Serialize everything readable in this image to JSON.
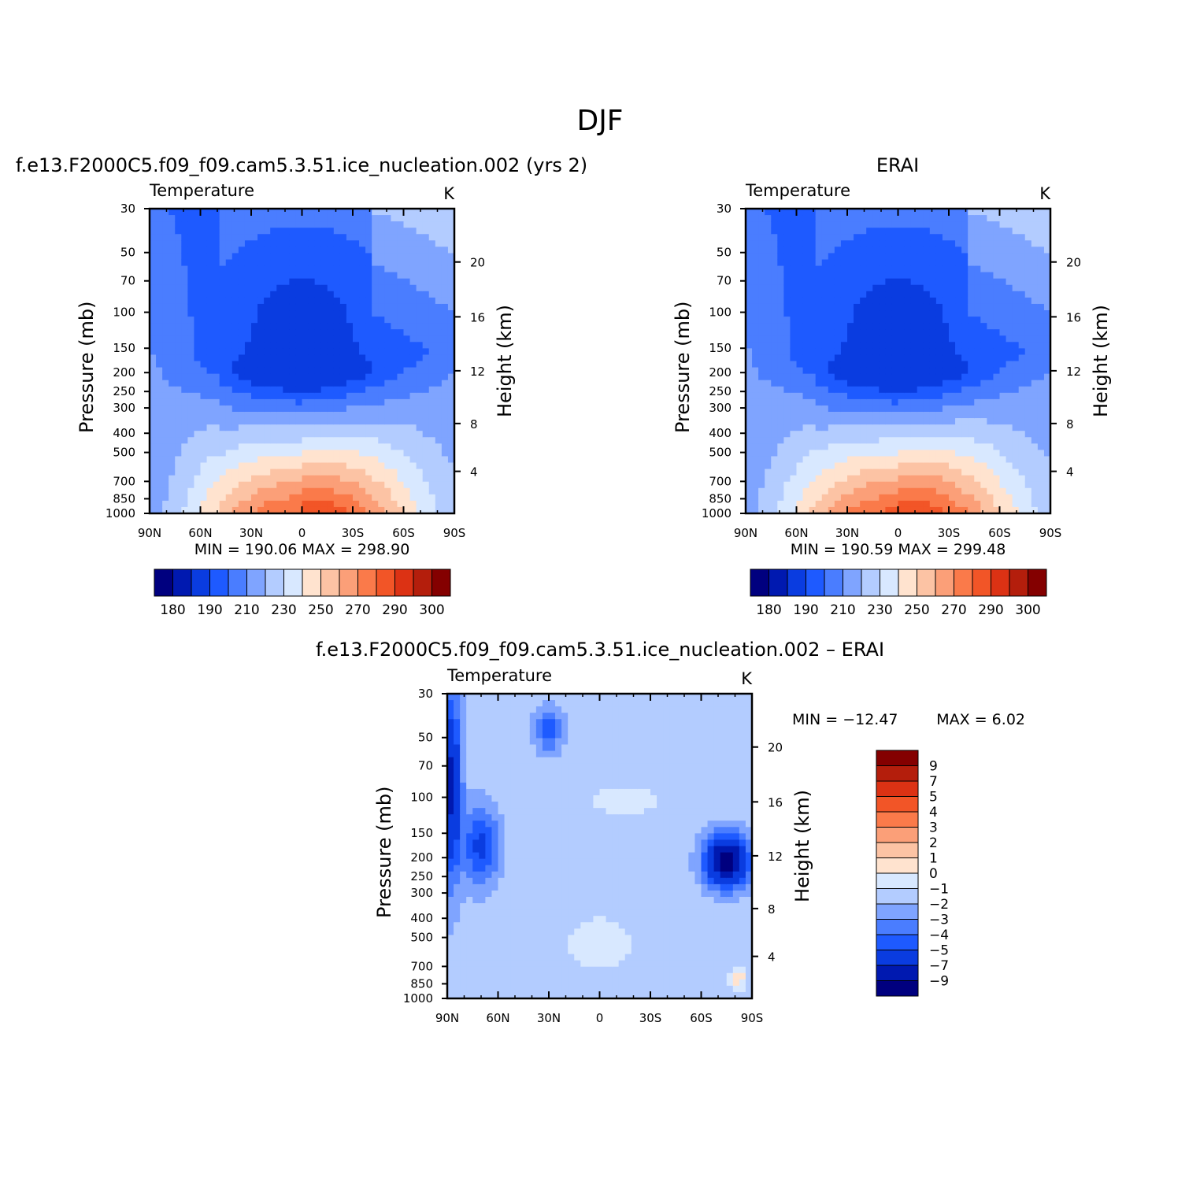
{
  "page_title": "DJF",
  "chart_data": [
    {
      "type": "heatmap",
      "id": "model",
      "title": "f.e13.F2000C5.f09_f09.cam5.3.51.ice_nucleation.002 (yrs 2)",
      "left_label": "Temperature",
      "right_label": "K",
      "ylabel": "Pressure (mb)",
      "ylabel_right": "Height (km)",
      "xticks": [
        "90N",
        "60N",
        "30N",
        "0",
        "30S",
        "60S",
        "90S"
      ],
      "yticks": [
        "30",
        "50",
        "70",
        "100",
        "150",
        "200",
        "250",
        "300",
        "400",
        "500",
        "700",
        "850",
        "1000"
      ],
      "ylim": [
        1000,
        30
      ],
      "height_ticks": [
        "20",
        "16",
        "12",
        "8",
        "4"
      ],
      "stats": "MIN = 190.06   MAX = 298.90",
      "levels": [
        180,
        190,
        200,
        210,
        220,
        230,
        240,
        250,
        260,
        270,
        280,
        290,
        300
      ],
      "level_labels": [
        "180",
        "190",
        "210",
        "230",
        "250",
        "270",
        "290",
        "300"
      ],
      "colors": [
        "#00007f",
        "#0019b0",
        "#0a3ce0",
        "#1e5aff",
        "#4a7dff",
        "#7fa4ff",
        "#b3ccff",
        "#d8e8ff",
        "#ffe3cf",
        "#fcc3a4",
        "#fb9f78",
        "#fa7a4a",
        "#f25527",
        "#dc3214",
        "#b41e0c",
        "#840000"
      ],
      "field": "temperature",
      "min": 190.06,
      "max": 298.9
    },
    {
      "type": "heatmap",
      "id": "obs",
      "title": "ERAI",
      "left_label": "Temperature",
      "right_label": "K",
      "ylabel": "Pressure (mb)",
      "ylabel_right": "Height (km)",
      "xticks": [
        "90N",
        "60N",
        "30N",
        "0",
        "30S",
        "60S",
        "90S"
      ],
      "yticks": [
        "30",
        "50",
        "70",
        "100",
        "150",
        "200",
        "250",
        "300",
        "400",
        "500",
        "700",
        "850",
        "1000"
      ],
      "ylim": [
        1000,
        30
      ],
      "height_ticks": [
        "20",
        "16",
        "12",
        "8",
        "4"
      ],
      "stats": "MIN = 190.59   MAX = 299.48",
      "levels": [
        180,
        190,
        200,
        210,
        220,
        230,
        240,
        250,
        260,
        270,
        280,
        290,
        300
      ],
      "level_labels": [
        "180",
        "190",
        "210",
        "230",
        "250",
        "270",
        "290",
        "300"
      ],
      "colors": [
        "#00007f",
        "#0019b0",
        "#0a3ce0",
        "#1e5aff",
        "#4a7dff",
        "#7fa4ff",
        "#b3ccff",
        "#d8e8ff",
        "#ffe3cf",
        "#fcc3a4",
        "#fb9f78",
        "#fa7a4a",
        "#f25527",
        "#dc3214",
        "#b41e0c",
        "#840000"
      ],
      "field": "temperature",
      "min": 190.59,
      "max": 299.48
    },
    {
      "type": "heatmap",
      "id": "diff",
      "title": "f.e13.F2000C5.f09_f09.cam5.3.51.ice_nucleation.002 – ERAI",
      "left_label": "Temperature",
      "right_label": "K",
      "ylabel": "Pressure (mb)",
      "ylabel_right": "Height (km)",
      "xticks": [
        "90N",
        "60N",
        "30N",
        "0",
        "30S",
        "60S",
        "90S"
      ],
      "yticks": [
        "30",
        "50",
        "70",
        "100",
        "150",
        "200",
        "250",
        "300",
        "400",
        "500",
        "700",
        "850",
        "1000"
      ],
      "ylim": [
        1000,
        30
      ],
      "height_ticks": [
        "20",
        "16",
        "12",
        "8",
        "4"
      ],
      "stats_min": "MIN = −12.47",
      "stats_max": "MAX =     6.02",
      "levels": [
        9,
        7,
        5,
        4,
        3,
        2,
        1,
        0,
        -1,
        -2,
        -3,
        -4,
        -5,
        -7,
        -9
      ],
      "level_labels": [
        "9",
        "7",
        "5",
        "4",
        "3",
        "2",
        "1",
        "0",
        "−1",
        "−2",
        "−3",
        "−4",
        "−5",
        "−7",
        "−9"
      ],
      "colors": [
        "#840000",
        "#b41e0c",
        "#dc3214",
        "#f25527",
        "#fa7a4a",
        "#fb9f78",
        "#fcc3a4",
        "#ffe3cf",
        "#d8e8ff",
        "#b3ccff",
        "#7fa4ff",
        "#4a7dff",
        "#1e5aff",
        "#0a3ce0",
        "#0019b0",
        "#00007f"
      ],
      "field": "difference",
      "min": -12.47,
      "max": 6.02
    }
  ]
}
